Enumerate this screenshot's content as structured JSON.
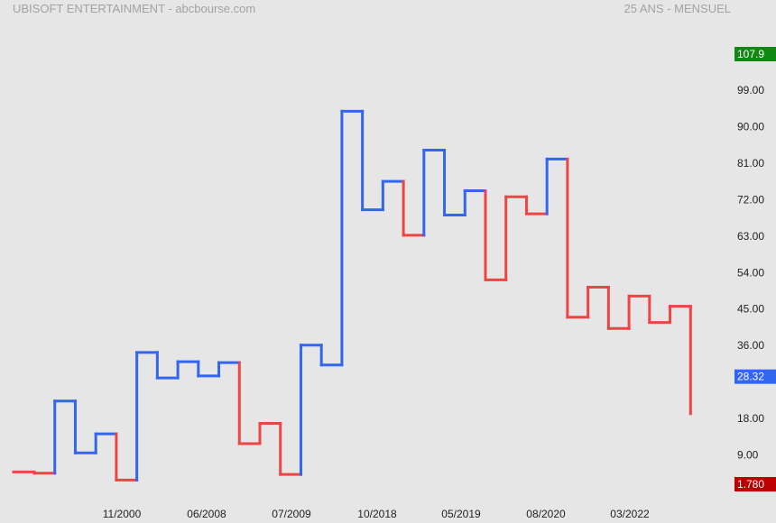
{
  "header": {
    "title": "UBISOFT ENTERTAINMENT - abcbourse.com",
    "period": "25 ANS - MENSUEL"
  },
  "chart_data": {
    "type": "line",
    "style": "kagi",
    "colors": {
      "up": "#3366ee",
      "down": "#ee4444",
      "max_badge": "#118811",
      "last_badge": "#3366ee",
      "min_badge": "#bb0000"
    },
    "y_ticks": [
      "99.00",
      "90.00",
      "81.00",
      "72.00",
      "63.00",
      "54.00",
      "45.00",
      "36.00",
      "18.00",
      "9.00"
    ],
    "ylim": [
      1.78,
      107.9
    ],
    "x_tick_labels": [
      "11/2000",
      "06/2008",
      "07/2009",
      "10/2018",
      "05/2019",
      "08/2020",
      "03/2022"
    ],
    "badges": {
      "max": "107.9",
      "last": "28.32",
      "min": "1.780"
    },
    "kagi_values": [
      4.8,
      4.5,
      22.3,
      9.5,
      14.2,
      2.8,
      34.3,
      28.0,
      32.0,
      28.5,
      31.8,
      11.8,
      16.8,
      4.2,
      36.1,
      31.2,
      93.8,
      69.5,
      76.5,
      63.2,
      84.2,
      68.2,
      74.2,
      52.2,
      72.7,
      68.5,
      82.0,
      43.0,
      50.4,
      40.2,
      48.2,
      41.7,
      45.7,
      19.2
    ],
    "kagi_turn_colors": [
      "down",
      "down",
      "up",
      "up",
      "up",
      "down",
      "up",
      "up",
      "up",
      "up",
      "up",
      "down",
      "down",
      "down",
      "up",
      "up",
      "up",
      "up",
      "up",
      "down",
      "up",
      "up",
      "up",
      "down",
      "down",
      "down",
      "up",
      "down",
      "down",
      "down",
      "down",
      "down",
      "down",
      "down"
    ]
  }
}
